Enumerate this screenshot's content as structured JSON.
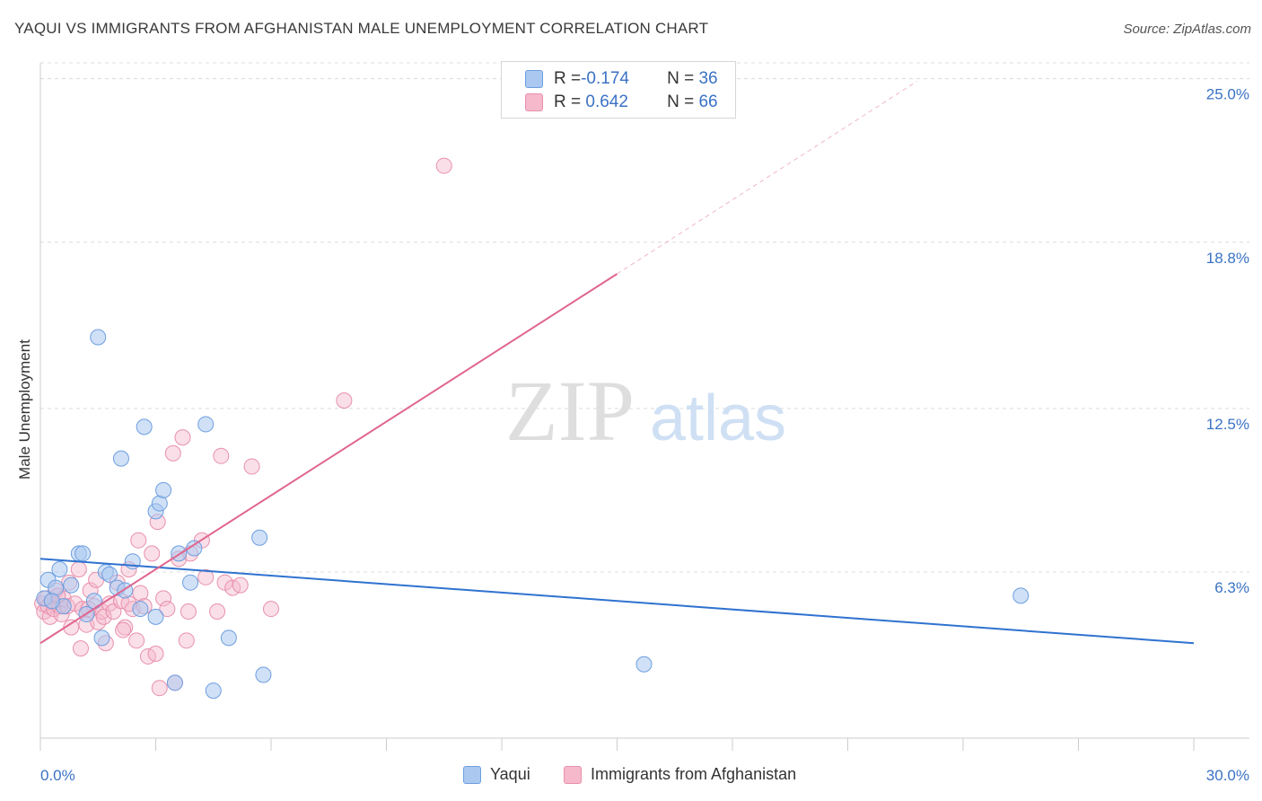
{
  "header": {
    "title": "YAQUI VS IMMIGRANTS FROM AFGHANISTAN MALE UNEMPLOYMENT CORRELATION CHART",
    "source": "Source: ZipAtlas.com"
  },
  "watermark": {
    "zip": "ZIP",
    "atlas": "atlas"
  },
  "legend": {
    "rows": [
      {
        "r_label": "R = ",
        "r_value": "-0.174",
        "n_label": "N = ",
        "n_value": "36"
      },
      {
        "r_label": "R = ",
        "r_value": " 0.642",
        "n_label": "N = ",
        "n_value": "66"
      }
    ]
  },
  "bottom_legend": {
    "series1": "Yaqui",
    "series2": "Immigrants from Afghanistan"
  },
  "colors": {
    "blue_fill": "#aac8f0",
    "blue_stroke": "#6d9ee0",
    "blue_line": "#2f72d0",
    "pink_fill": "#f5b9cb",
    "pink_stroke": "#e890ac",
    "pink_line": "#e0668f",
    "axis_text": "#3b72c4",
    "grid": "#dcdcdc"
  },
  "chart_data": {
    "type": "scatter",
    "title": "YAQUI VS IMMIGRANTS FROM AFGHANISTAN MALE UNEMPLOYMENT CORRELATION CHART",
    "xlabel": "",
    "ylabel": "Male Unemployment",
    "xlim": [
      0,
      30
    ],
    "ylim": [
      0,
      25.6
    ],
    "x_tick_labels": [
      "0.0%",
      "30.0%"
    ],
    "y_ticks": [
      6.3,
      12.5,
      18.8,
      25.0
    ],
    "y_tick_labels": [
      "6.3%",
      "12.5%",
      "18.8%",
      "25.0%"
    ],
    "grid": true,
    "legend_position": "top-center",
    "series": [
      {
        "name": "Yaqui",
        "r": -0.174,
        "n": 36,
        "trend": {
          "x": [
            0,
            30
          ],
          "y": [
            6.8,
            3.6
          ]
        },
        "points": [
          [
            0.1,
            5.3
          ],
          [
            0.2,
            6.0
          ],
          [
            0.4,
            5.7
          ],
          [
            0.5,
            6.4
          ],
          [
            0.6,
            5.0
          ],
          [
            0.8,
            5.8
          ],
          [
            1.0,
            7.0
          ],
          [
            1.1,
            7.0
          ],
          [
            1.2,
            4.7
          ],
          [
            1.4,
            5.2
          ],
          [
            1.5,
            15.2
          ],
          [
            1.6,
            3.8
          ],
          [
            1.7,
            6.3
          ],
          [
            1.8,
            6.2
          ],
          [
            2.0,
            5.7
          ],
          [
            2.1,
            10.6
          ],
          [
            2.2,
            5.6
          ],
          [
            2.4,
            6.7
          ],
          [
            2.6,
            4.9
          ],
          [
            2.7,
            11.8
          ],
          [
            3.0,
            4.6
          ],
          [
            3.0,
            8.6
          ],
          [
            3.1,
            8.9
          ],
          [
            3.2,
            9.4
          ],
          [
            3.5,
            2.1
          ],
          [
            3.6,
            7.0
          ],
          [
            3.9,
            5.9
          ],
          [
            4.0,
            7.2
          ],
          [
            4.3,
            11.9
          ],
          [
            4.5,
            1.8
          ],
          [
            4.9,
            3.8
          ],
          [
            5.7,
            7.6
          ],
          [
            5.8,
            2.4
          ],
          [
            15.7,
            2.8
          ],
          [
            25.5,
            5.4
          ],
          [
            0.3,
            5.2
          ]
        ]
      },
      {
        "name": "Immigrants from Afghanistan",
        "r": 0.642,
        "n": 66,
        "trend": {
          "x": [
            0,
            15
          ],
          "y": [
            3.6,
            17.6
          ]
        },
        "trend_ext": {
          "x": [
            15,
            22.8
          ],
          "y": [
            17.6,
            24.9
          ]
        },
        "points": [
          [
            0.05,
            5.1
          ],
          [
            0.1,
            4.8
          ],
          [
            0.15,
            5.3
          ],
          [
            0.2,
            5.0
          ],
          [
            0.25,
            4.6
          ],
          [
            0.3,
            5.2
          ],
          [
            0.35,
            4.9
          ],
          [
            0.4,
            5.6
          ],
          [
            0.5,
            5.0
          ],
          [
            0.55,
            4.7
          ],
          [
            0.6,
            5.3
          ],
          [
            0.7,
            5.0
          ],
          [
            0.75,
            5.9
          ],
          [
            0.8,
            4.2
          ],
          [
            0.9,
            5.1
          ],
          [
            1.0,
            6.4
          ],
          [
            1.05,
            3.4
          ],
          [
            1.1,
            4.9
          ],
          [
            1.2,
            4.3
          ],
          [
            1.3,
            5.6
          ],
          [
            1.4,
            5.0
          ],
          [
            1.45,
            6.0
          ],
          [
            1.5,
            4.4
          ],
          [
            1.6,
            4.8
          ],
          [
            1.65,
            4.6
          ],
          [
            1.7,
            3.6
          ],
          [
            1.8,
            5.1
          ],
          [
            1.9,
            4.8
          ],
          [
            2.0,
            5.9
          ],
          [
            2.1,
            5.2
          ],
          [
            2.2,
            4.2
          ],
          [
            2.3,
            6.4
          ],
          [
            2.4,
            4.9
          ],
          [
            2.5,
            3.7
          ],
          [
            2.55,
            7.5
          ],
          [
            2.6,
            5.5
          ],
          [
            2.7,
            5.0
          ],
          [
            2.8,
            3.1
          ],
          [
            2.9,
            7.0
          ],
          [
            3.0,
            3.2
          ],
          [
            3.05,
            8.2
          ],
          [
            3.1,
            1.9
          ],
          [
            3.2,
            5.3
          ],
          [
            3.3,
            4.9
          ],
          [
            3.5,
            2.1
          ],
          [
            3.6,
            6.8
          ],
          [
            3.7,
            11.4
          ],
          [
            3.8,
            3.7
          ],
          [
            3.85,
            4.8
          ],
          [
            3.9,
            7.0
          ],
          [
            4.2,
            7.5
          ],
          [
            4.3,
            6.1
          ],
          [
            4.6,
            4.8
          ],
          [
            4.7,
            10.7
          ],
          [
            4.8,
            5.9
          ],
          [
            5.0,
            5.7
          ],
          [
            5.2,
            5.8
          ],
          [
            5.5,
            10.3
          ],
          [
            6.0,
            4.9
          ],
          [
            7.9,
            12.8
          ],
          [
            10.5,
            21.7
          ],
          [
            2.3,
            5.1
          ],
          [
            0.45,
            5.4
          ],
          [
            1.25,
            4.9
          ],
          [
            3.45,
            10.8
          ],
          [
            2.15,
            4.1
          ]
        ]
      }
    ]
  }
}
